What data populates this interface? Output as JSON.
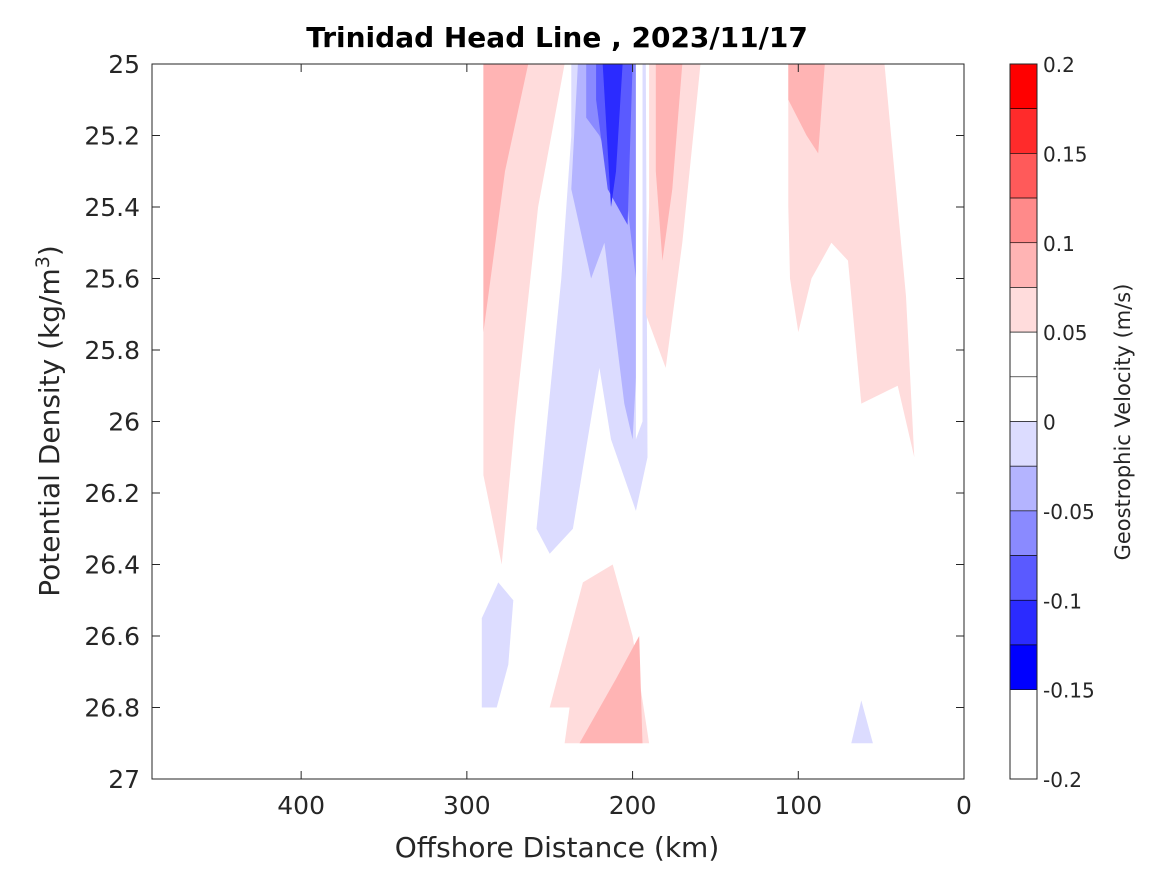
{
  "chart_data": {
    "type": "contour",
    "title": "Trinidad Head Line , 2023/11/17",
    "xlabel": "Offshore Distance (km)",
    "ylabel": "Potential Density (kg/m",
    "ylabel_sup": "3",
    "ylabel_end": ")",
    "x_reversed": true,
    "xlim": [
      0,
      490
    ],
    "ylim": [
      25,
      27
    ],
    "y_reversed": true,
    "x_ticks": [
      400,
      300,
      200,
      100,
      0
    ],
    "y_ticks": [
      25,
      25.2,
      25.4,
      25.6,
      25.8,
      26,
      26.2,
      26.4,
      26.6,
      26.8,
      27
    ],
    "colorbar": {
      "label": "Geostrophic Velocity (m/s)",
      "range": [
        -0.2,
        0.2
      ],
      "step": 0.025,
      "tick_values": [
        0.2,
        0.15,
        0.1,
        0.05,
        0,
        -0.05,
        -0.1,
        -0.15,
        -0.2
      ],
      "tick_labels": [
        "0.2",
        "0.15",
        "0.1",
        "0.05",
        "0",
        "-0.05",
        "-0.1",
        "-0.15",
        "-0.2"
      ],
      "colors_high_to_low": [
        "#ff0000",
        "#ff2b2b",
        "#ff5a5a",
        "#ff8a8a",
        "#ffb4b4",
        "#ffdcdc",
        "#ffffff",
        "#ffffff",
        "#dcdcff",
        "#b4b4ff",
        "#8a8aff",
        "#5a5aff",
        "#2b2bff",
        "#0000ff"
      ]
    },
    "regions": [
      {
        "name": "pos-1-west",
        "level": 1,
        "points": [
          [
            290,
            25
          ],
          [
            241,
            25
          ],
          [
            257,
            25.4
          ],
          [
            271,
            26
          ],
          [
            279,
            26.4
          ],
          [
            290,
            26.15
          ]
        ]
      },
      {
        "name": "pos-2-west",
        "level": 2,
        "points": [
          [
            290,
            25
          ],
          [
            263,
            25
          ],
          [
            277,
            25.3
          ],
          [
            290,
            25.75
          ]
        ]
      },
      {
        "name": "neg-1-core",
        "level": -1,
        "points": [
          [
            237,
            25
          ],
          [
            192,
            25
          ],
          [
            191,
            26.1
          ],
          [
            198,
            26.25
          ],
          [
            213,
            26.05
          ],
          [
            220,
            25.85
          ],
          [
            236,
            26.3
          ],
          [
            250,
            26.37
          ],
          [
            258,
            26.3
          ],
          [
            243,
            25.6
          ],
          [
            237,
            25.2
          ]
        ]
      },
      {
        "name": "neg-2-core",
        "level": -2,
        "points": [
          [
            233,
            25
          ],
          [
            196,
            25
          ],
          [
            197,
            25.8
          ],
          [
            200,
            26.05
          ],
          [
            205,
            25.95
          ],
          [
            217,
            25.5
          ],
          [
            225,
            25.6
          ],
          [
            237,
            25.35
          ]
        ]
      },
      {
        "name": "neg-3-core",
        "level": -3,
        "points": [
          [
            228,
            25
          ],
          [
            198,
            25
          ],
          [
            198,
            25.6
          ],
          [
            203,
            25.4
          ],
          [
            220,
            25.2
          ],
          [
            228,
            25.15
          ]
        ]
      },
      {
        "name": "neg-4-core",
        "level": -4,
        "points": [
          [
            222,
            25
          ],
          [
            200,
            25
          ],
          [
            203,
            25.45
          ],
          [
            215,
            25.35
          ],
          [
            222,
            25.1
          ]
        ]
      },
      {
        "name": "neg-5-core",
        "level": -5,
        "points": [
          [
            218,
            25
          ],
          [
            206,
            25
          ],
          [
            210,
            25.3
          ],
          [
            213,
            25.4
          ]
        ]
      },
      {
        "name": "gap-white",
        "level": 0,
        "points": [
          [
            198,
            25
          ],
          [
            194,
            25
          ],
          [
            194,
            26.0
          ],
          [
            198,
            26.05
          ]
        ]
      },
      {
        "name": "pos-1-mid",
        "level": 1,
        "points": [
          [
            190,
            25
          ],
          [
            159,
            25
          ],
          [
            170,
            25.5
          ],
          [
            180,
            25.85
          ],
          [
            192,
            25.7
          ],
          [
            190,
            25.4
          ]
        ]
      },
      {
        "name": "pos-2-mid",
        "level": 2,
        "points": [
          [
            186,
            25
          ],
          [
            170,
            25
          ],
          [
            176,
            25.35
          ],
          [
            182,
            25.55
          ],
          [
            186,
            25.3
          ]
        ]
      },
      {
        "name": "pos-1-east",
        "level": 1,
        "points": [
          [
            106,
            25
          ],
          [
            48,
            25
          ],
          [
            42,
            25.3
          ],
          [
            35,
            25.65
          ],
          [
            30,
            26.1
          ],
          [
            40,
            25.9
          ],
          [
            62,
            25.95
          ],
          [
            70,
            25.55
          ],
          [
            80,
            25.5
          ],
          [
            92,
            25.6
          ],
          [
            100,
            25.75
          ],
          [
            105,
            25.6
          ],
          [
            106,
            25.4
          ]
        ]
      },
      {
        "name": "pos-2-east",
        "level": 2,
        "points": [
          [
            106,
            25
          ],
          [
            84,
            25
          ],
          [
            88,
            25.25
          ],
          [
            95,
            25.2
          ],
          [
            106,
            25.1
          ]
        ]
      },
      {
        "name": "neg-1-lower",
        "level": -1,
        "points": [
          [
            291,
            26.55
          ],
          [
            281,
            26.45
          ],
          [
            272,
            26.5
          ],
          [
            275,
            26.68
          ],
          [
            282,
            26.8
          ],
          [
            291,
            26.8
          ]
        ]
      },
      {
        "name": "pos-1-lower",
        "level": 1,
        "points": [
          [
            250,
            26.8
          ],
          [
            230,
            26.45
          ],
          [
            212,
            26.4
          ],
          [
            200,
            26.6
          ],
          [
            190,
            26.9
          ],
          [
            241,
            26.9
          ],
          [
            238,
            26.8
          ]
        ]
      },
      {
        "name": "pos-2-lower",
        "level": 2,
        "points": [
          [
            232,
            26.9
          ],
          [
            210,
            26.72
          ],
          [
            196,
            26.6
          ],
          [
            194,
            26.9
          ]
        ]
      },
      {
        "name": "neg-1-deep-east",
        "level": -1,
        "points": [
          [
            68,
            26.9
          ],
          [
            62,
            26.78
          ],
          [
            55,
            26.9
          ]
        ]
      }
    ]
  }
}
